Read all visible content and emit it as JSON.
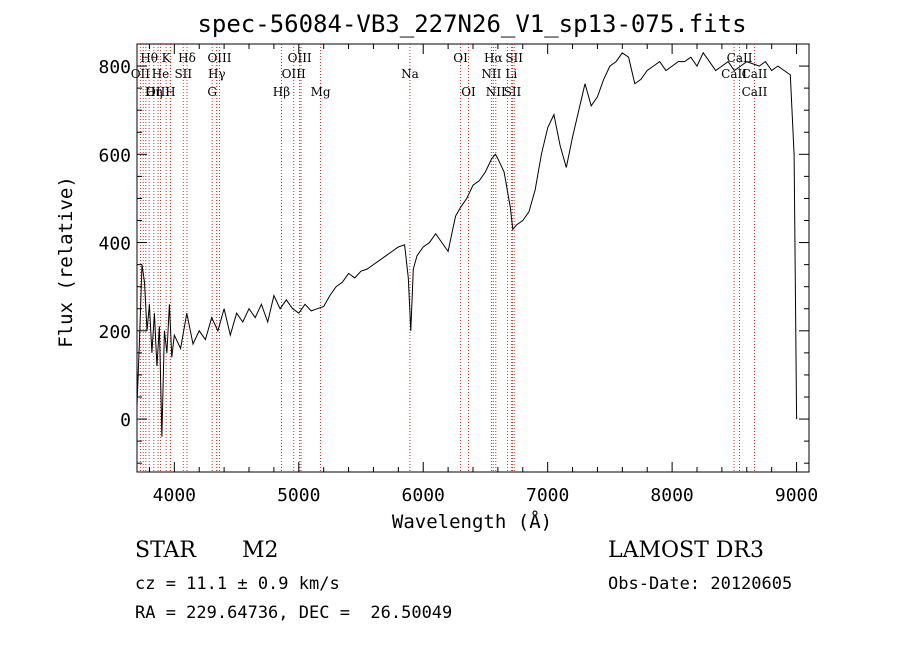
{
  "chart_data": {
    "type": "line",
    "title": "spec-56084-VB3_227N26_V1_sp13-075.fits",
    "xlabel": "Wavelength (Å)",
    "ylabel": "Flux (relative)",
    "xlim": [
      3700,
      9100
    ],
    "ylim": [
      -120,
      850
    ],
    "xticks": [
      4000,
      5000,
      6000,
      7000,
      8000,
      9000
    ],
    "yticks": [
      0,
      200,
      400,
      600,
      800
    ],
    "series": [
      {
        "name": "flux",
        "x": [
          3700,
          3720,
          3740,
          3760,
          3780,
          3800,
          3820,
          3840,
          3860,
          3880,
          3900,
          3920,
          3940,
          3960,
          3980,
          4000,
          4050,
          4100,
          4150,
          4200,
          4250,
          4300,
          4350,
          4400,
          4450,
          4500,
          4550,
          4600,
          4650,
          4700,
          4750,
          4800,
          4850,
          4900,
          4950,
          5000,
          5050,
          5100,
          5150,
          5200,
          5250,
          5300,
          5350,
          5400,
          5450,
          5500,
          5550,
          5600,
          5650,
          5700,
          5750,
          5800,
          5850,
          5880,
          5900,
          5920,
          5950,
          6000,
          6050,
          6100,
          6150,
          6200,
          6230,
          6260,
          6300,
          6350,
          6400,
          6450,
          6500,
          6550,
          6580,
          6600,
          6650,
          6700,
          6720,
          6750,
          6800,
          6850,
          6900,
          6950,
          7000,
          7050,
          7100,
          7150,
          7200,
          7250,
          7300,
          7350,
          7400,
          7450,
          7500,
          7550,
          7600,
          7650,
          7700,
          7750,
          7800,
          7850,
          7900,
          7950,
          8000,
          8050,
          8100,
          8150,
          8200,
          8250,
          8300,
          8350,
          8400,
          8450,
          8500,
          8550,
          8600,
          8650,
          8700,
          8750,
          8800,
          8850,
          8900,
          8950,
          8980,
          9000
        ],
        "y": [
          30,
          180,
          350,
          310,
          200,
          260,
          150,
          240,
          120,
          210,
          -40,
          200,
          150,
          260,
          140,
          190,
          160,
          240,
          170,
          200,
          180,
          230,
          200,
          250,
          190,
          240,
          220,
          250,
          230,
          260,
          220,
          280,
          250,
          270,
          250,
          240,
          260,
          245,
          250,
          255,
          280,
          300,
          310,
          330,
          320,
          335,
          340,
          350,
          360,
          370,
          380,
          390,
          395,
          320,
          200,
          340,
          370,
          390,
          400,
          420,
          400,
          380,
          420,
          460,
          480,
          500,
          530,
          540,
          560,
          590,
          600,
          590,
          560,
          480,
          430,
          440,
          450,
          470,
          520,
          600,
          660,
          690,
          620,
          570,
          640,
          700,
          760,
          710,
          730,
          770,
          800,
          810,
          830,
          820,
          760,
          770,
          790,
          800,
          810,
          790,
          800,
          810,
          810,
          820,
          800,
          830,
          810,
          790,
          800,
          810,
          790,
          800,
          810,
          805,
          800,
          810,
          790,
          800,
          790,
          780,
          600,
          0
        ]
      }
    ],
    "lines_top": [
      {
        "label": "Hθ",
        "x": 3798
      },
      {
        "label": "K",
        "x": 3934
      },
      {
        "label": "Hδ",
        "x": 4102
      },
      {
        "label": "OIII",
        "x": 4363
      },
      {
        "label": "OIII",
        "x": 5007
      },
      {
        "label": "OI",
        "x": 6300
      },
      {
        "label": "Hα",
        "x": 6563
      },
      {
        "label": "SII",
        "x": 6731
      },
      {
        "label": "CaII",
        "x": 8542
      }
    ],
    "lines_mid": [
      {
        "label": "OII",
        "x": 3727
      },
      {
        "label": "He",
        "x": 3889
      },
      {
        "label": "SII",
        "x": 4072
      },
      {
        "label": "Hγ",
        "x": 4341
      },
      {
        "label": "OIII",
        "x": 4959
      },
      {
        "label": "Na",
        "x": 5893
      },
      {
        "label": "NII",
        "x": 6548
      },
      {
        "label": "Li",
        "x": 6708
      },
      {
        "label": "CaII",
        "x": 8498
      },
      {
        "label": "CaII",
        "x": 8662
      }
    ],
    "lines_bot": [
      {
        "label": "OIII",
        "x": 3869
      },
      {
        "label": "Hη",
        "x": 3835
      },
      {
        "label": "H",
        "x": 3968
      },
      {
        "label": "G",
        "x": 4304
      },
      {
        "label": "Hβ",
        "x": 4861
      },
      {
        "label": "Mg",
        "x": 5175
      },
      {
        "label": "OI",
        "x": 6364
      },
      {
        "label": "NII",
        "x": 6583
      },
      {
        "label": "SII",
        "x": 6717
      },
      {
        "label": "CaII",
        "x": 8662
      }
    ],
    "extra_lines_x": [
      3750,
      3771,
      3889,
      3970,
      4340,
      5018,
      6678
    ]
  },
  "info": {
    "object_class": "STAR",
    "subclass": "M2",
    "survey": "LAMOST DR3",
    "cz": "cz = 11.1 ± 0.9 km/s",
    "obs_date": "Obs-Date: 20120605",
    "coords": "RA = 229.64736, DEC =  26.50049"
  }
}
